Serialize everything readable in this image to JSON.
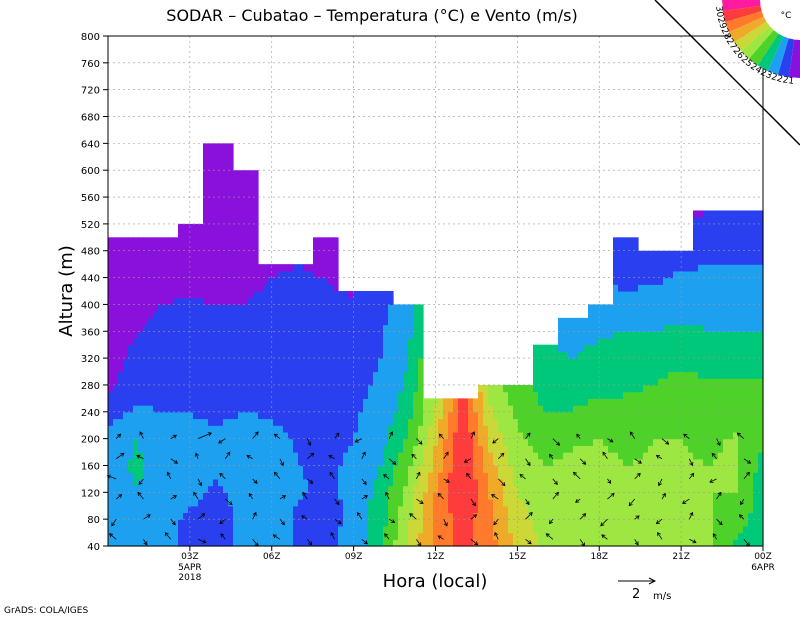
{
  "chart_data": {
    "type": "heatmap",
    "title": "SODAR – Cubatao – Temperatura (°C) e Vento (m/s)",
    "xlabel": "Hora (local)",
    "ylabel": "Altura (m)",
    "footer": "GrADS: COLA/IGES",
    "x_range_hours": [
      0,
      24
    ],
    "y_range_m": [
      40,
      800
    ],
    "y_ticks": [
      40,
      80,
      120,
      160,
      200,
      240,
      280,
      320,
      360,
      400,
      440,
      480,
      520,
      560,
      600,
      640,
      680,
      720,
      760,
      800
    ],
    "x_ticks": [
      {
        "hour": 3,
        "label": "03Z",
        "sub": [
          "5APR",
          "2018"
        ]
      },
      {
        "hour": 6,
        "label": "06Z",
        "sub": []
      },
      {
        "hour": 9,
        "label": "09Z",
        "sub": []
      },
      {
        "hour": 12,
        "label": "12Z",
        "sub": []
      },
      {
        "hour": 15,
        "label": "15Z",
        "sub": []
      },
      {
        "hour": 18,
        "label": "18Z",
        "sub": []
      },
      {
        "hour": 21,
        "label": "21Z",
        "sub": []
      },
      {
        "hour": 24,
        "label": "00Z",
        "sub": [
          "6APR"
        ]
      }
    ],
    "grid": true,
    "legend": {
      "placement": "top-right",
      "unit": "°C",
      "labels": [
        "30",
        "29",
        "28",
        "27",
        "26",
        "25",
        "24",
        "23",
        "22",
        "21"
      ],
      "colors": [
        "#ff1aa0",
        "#ff3c3c",
        "#ff7a2a",
        "#f0aa2a",
        "#ccd838",
        "#9ee642",
        "#4ed22a",
        "#00c87a",
        "#1ea0f0",
        "#2a40f0",
        "#8a10dc"
      ]
    },
    "wind_key": {
      "value": "2",
      "unit": "m/s"
    },
    "hours": [
      0.1,
      1,
      2,
      3,
      4,
      5,
      6,
      7,
      8,
      9,
      10,
      11,
      12,
      13,
      14,
      15,
      16,
      17,
      18,
      19,
      20,
      21,
      22,
      23,
      23.9
    ],
    "top_height_m": [
      500,
      500,
      500,
      520,
      640,
      600,
      460,
      460,
      500,
      420,
      420,
      400,
      260,
      260,
      280,
      280,
      340,
      380,
      400,
      500,
      480,
      480,
      540,
      540,
      540
    ],
    "heights_m": [
      40,
      80,
      120,
      160,
      200,
      240,
      280,
      320,
      360,
      400,
      440,
      480,
      520,
      560,
      600,
      640
    ],
    "temperature_c": [
      [
        22.2,
        22.4,
        22.6,
        22.3,
        22.6,
        21.6,
        20.9,
        20.6,
        20.4,
        20.1,
        19.8,
        19.5,
        19.2,
        18.9,
        18.6,
        18.3
      ],
      [
        22.6,
        22.7,
        22.9,
        23.2,
        23.0,
        22.1,
        21.6,
        21.3,
        20.9,
        20.6,
        20.3,
        20.0,
        19.7,
        19.4,
        19.1,
        18.8
      ],
      [
        22.4,
        22.8,
        22.8,
        22.6,
        22.4,
        22.0,
        21.8,
        21.6,
        21.3,
        21.0,
        20.7,
        20.4,
        20.1,
        19.8,
        19.5,
        19.2
      ],
      [
        21.6,
        21.6,
        22.4,
        22.4,
        22.2,
        22.0,
        21.9,
        21.6,
        21.4,
        21.1,
        20.8,
        20.5,
        20.2,
        19.9,
        19.6,
        19.3
      ],
      [
        21.6,
        21.5,
        21.8,
        22.2,
        22.2,
        21.8,
        21.5,
        21.4,
        21.2,
        21.0,
        20.6,
        20.3,
        20.0,
        19.7,
        19.0,
        18.5
      ],
      [
        22.4,
        22.3,
        22.4,
        22.5,
        22.4,
        22.0,
        21.6,
        21.4,
        21.2,
        21.0,
        20.8,
        20.6,
        20.3,
        20.0,
        19.6,
        18.4
      ],
      [
        22.5,
        22.4,
        22.5,
        22.4,
        22.2,
        21.9,
        21.8,
        21.6,
        21.4,
        21.2,
        21.0,
        20.8,
        20.6,
        20.4,
        20.2,
        20.0
      ],
      [
        21.9,
        21.8,
        22.1,
        22.0,
        21.9,
        21.8,
        21.7,
        21.6,
        21.5,
        21.3,
        21.1,
        20.9,
        20.7,
        20.5,
        20.3,
        20.1
      ],
      [
        21.8,
        21.6,
        21.8,
        21.9,
        21.8,
        21.6,
        21.5,
        21.4,
        21.3,
        21.2,
        21.0,
        20.6,
        20.2,
        19.8,
        19.4,
        19.0
      ],
      [
        22.4,
        22.3,
        22.2,
        22.1,
        22.0,
        21.9,
        21.8,
        21.7,
        21.5,
        21.2,
        20.6,
        20.2,
        19.8,
        19.4,
        19.0,
        18.6
      ],
      [
        23.8,
        23.6,
        23.4,
        23.0,
        22.6,
        22.3,
        22.1,
        22.0,
        21.9,
        21.7,
        21.4,
        21.0,
        20.6,
        20.2,
        19.8,
        19.4
      ],
      [
        26.2,
        25.8,
        25.4,
        24.8,
        24.2,
        23.6,
        23.2,
        23.0,
        22.8,
        22.5,
        22.2,
        21.8,
        21.4,
        21.0,
        20.6,
        20.2
      ],
      [
        28.4,
        28.2,
        28.0,
        27.4,
        26.8,
        26.2,
        25.6,
        25.2,
        24.8,
        24.4,
        24.0,
        23.6,
        23.2,
        22.8,
        22.4,
        22.0
      ],
      [
        29.2,
        29.6,
        30.1,
        30.2,
        30.0,
        29.6,
        29.0,
        28.6,
        28.2,
        27.8,
        27.4,
        27.0,
        26.6,
        26.2,
        25.8,
        25.4
      ],
      [
        28.4,
        28.2,
        28.0,
        27.4,
        26.8,
        26.2,
        25.6,
        25.2,
        24.8,
        24.4,
        24.0,
        23.6,
        23.2,
        22.8,
        22.4,
        22.0
      ],
      [
        26.8,
        26.4,
        26.0,
        25.6,
        25.2,
        24.8,
        24.4,
        24.0,
        23.6,
        23.2,
        22.8,
        22.4,
        22.0,
        21.6,
        21.2,
        20.8
      ],
      [
        25.8,
        25.6,
        25.4,
        25.0,
        24.6,
        24.0,
        23.6,
        23.2,
        22.8,
        22.4,
        22.0,
        21.6,
        21.2,
        20.8,
        20.4,
        20.0
      ],
      [
        25.9,
        25.7,
        25.5,
        25.2,
        24.9,
        24.1,
        23.3,
        23.0,
        22.8,
        22.4,
        22.0,
        21.6,
        21.2,
        20.8,
        20.4,
        20.0
      ],
      [
        25.8,
        25.6,
        25.4,
        25.2,
        25.0,
        24.4,
        23.6,
        23.2,
        22.9,
        22.6,
        22.2,
        21.8,
        21.4,
        21.0,
        20.6,
        20.2
      ],
      [
        25.6,
        25.4,
        25.2,
        25.0,
        24.8,
        24.4,
        23.8,
        23.4,
        23.0,
        22.4,
        21.6,
        21.2,
        20.8,
        20.4,
        20.0,
        19.6
      ],
      [
        25.4,
        25.3,
        25.2,
        25.1,
        25.0,
        24.6,
        24.0,
        23.6,
        23.0,
        22.6,
        21.8,
        21.4,
        21.0,
        20.6,
        20.2,
        19.8
      ],
      [
        25.4,
        25.3,
        25.2,
        25.1,
        25.0,
        24.7,
        24.3,
        23.8,
        23.2,
        22.6,
        22.2,
        21.4,
        21.0,
        20.6,
        20.2,
        19.8
      ],
      [
        25.2,
        25.1,
        25.0,
        25.0,
        24.8,
        24.5,
        24.1,
        23.6,
        23.0,
        22.6,
        22.2,
        21.8,
        21.2,
        20.8,
        20.4,
        20.0
      ],
      [
        23.8,
        24.4,
        25.0,
        25.2,
        25.1,
        24.5,
        24.1,
        23.6,
        23.0,
        22.6,
        22.4,
        21.6,
        21.2,
        20.8,
        20.4,
        20.0
      ],
      [
        23.6,
        23.6,
        23.6,
        23.8,
        24.2,
        24.2,
        24.1,
        23.6,
        23.0,
        22.6,
        22.4,
        21.6,
        21.2,
        20.8,
        20.4,
        20.0
      ]
    ],
    "wind_hours": [
      0.3,
      1.3,
      2.3,
      3.3,
      4.3,
      5.3,
      6.3,
      7.3,
      8.3,
      9.3,
      10.3,
      11.3,
      12.3,
      13.3,
      14.3,
      15.3,
      16.3,
      17.3,
      18.3,
      19.3,
      20.3,
      21.3,
      22.3,
      23.3
    ],
    "wind_heights_m": [
      50,
      80,
      110,
      140,
      170,
      200
    ],
    "wind_u": [
      [
        -0.6,
        -0.4,
        0.5,
        -0.8,
        0.7,
        0.4
      ],
      [
        0.3,
        0.6,
        -0.5,
        -0.4,
        -0.6,
        -0.3
      ],
      [
        -0.5,
        0.4,
        0.5,
        -0.3,
        0.6,
        0.5
      ],
      [
        0.7,
        0.6,
        -0.4,
        0.3,
        -0.2,
        1.2
      ],
      [
        -0.4,
        -0.5,
        0.6,
        -0.5,
        0.4,
        -0.6
      ],
      [
        0.5,
        0.3,
        -0.3,
        0.4,
        -0.5,
        0.5
      ],
      [
        -0.6,
        0.4,
        0.5,
        -0.5,
        0.3,
        -0.5
      ],
      [
        0.4,
        -0.5,
        -0.4,
        0.5,
        0.6,
        0.3
      ],
      [
        -0.3,
        0.6,
        0.4,
        -0.4,
        -0.5,
        0.4
      ],
      [
        0.5,
        -0.4,
        0.5,
        0.4,
        0.3,
        -0.6
      ],
      [
        -0.4,
        0.5,
        -0.3,
        -0.5,
        0.6,
        0.3
      ],
      [
        0.4,
        -0.6,
        0.6,
        0.3,
        -0.4,
        0.5
      ],
      [
        -0.5,
        0.3,
        -0.5,
        0.5,
        0.4,
        -0.4
      ],
      [
        0.6,
        0.5,
        0.4,
        -0.4,
        -0.6,
        0.3
      ],
      [
        -0.3,
        -0.4,
        -0.6,
        0.6,
        0.5,
        -0.5
      ],
      [
        0.5,
        0.6,
        0.3,
        -0.5,
        0.4,
        0.4
      ],
      [
        -0.6,
        -0.3,
        0.5,
        0.4,
        -0.3,
        0.6
      ],
      [
        0.4,
        0.5,
        -0.4,
        -0.6,
        0.5,
        -0.3
      ],
      [
        -0.5,
        -0.6,
        0.6,
        0.3,
        -0.4,
        0.5
      ],
      [
        0.3,
        0.4,
        -0.5,
        0.5,
        0.6,
        -0.4
      ],
      [
        -0.4,
        -0.5,
        0.3,
        -0.3,
        -0.5,
        0.6
      ],
      [
        0.6,
        0.3,
        -0.6,
        0.4,
        0.3,
        -0.5
      ],
      [
        -0.3,
        0.5,
        0.4,
        -0.6,
        -0.4,
        0.3
      ],
      [
        0.5,
        -0.4,
        -0.3,
        0.5,
        0.6,
        -0.6
      ]
    ],
    "wind_v": [
      [
        0.5,
        -0.6,
        0.4,
        0.3,
        0.5,
        0.4
      ],
      [
        -0.5,
        0.4,
        0.6,
        -0.5,
        0.3,
        0.6
      ],
      [
        0.6,
        -0.5,
        0.3,
        0.6,
        -0.4,
        0.3
      ],
      [
        -0.3,
        0.5,
        0.6,
        -0.6,
        0.5,
        0.5
      ],
      [
        0.5,
        -0.4,
        -0.5,
        0.5,
        0.6,
        -0.4
      ],
      [
        -0.6,
        0.6,
        0.5,
        -0.4,
        0.3,
        0.6
      ],
      [
        0.4,
        -0.5,
        0.3,
        0.6,
        -0.6,
        0.4
      ],
      [
        -0.5,
        0.3,
        0.6,
        -0.4,
        0.5,
        -0.6
      ],
      [
        0.6,
        -0.4,
        -0.5,
        0.6,
        0.3,
        0.5
      ],
      [
        -0.4,
        0.6,
        0.3,
        -0.5,
        0.6,
        -0.3
      ],
      [
        0.5,
        -0.3,
        0.6,
        0.4,
        -0.5,
        0.6
      ],
      [
        -0.6,
        0.5,
        -0.4,
        0.6,
        0.4,
        -0.5
      ],
      [
        0.3,
        -0.6,
        0.5,
        -0.3,
        0.6,
        0.4
      ],
      [
        -0.5,
        0.4,
        -0.6,
        0.5,
        -0.3,
        0.6
      ],
      [
        0.6,
        -0.5,
        0.4,
        -0.6,
        0.5,
        -0.4
      ],
      [
        -0.4,
        0.6,
        -0.5,
        0.4,
        -0.6,
        0.5
      ],
      [
        0.5,
        -0.4,
        0.6,
        -0.5,
        0.4,
        -0.6
      ],
      [
        -0.6,
        0.5,
        -0.3,
        0.6,
        -0.5,
        0.4
      ],
      [
        0.4,
        -0.6,
        0.5,
        -0.4,
        0.6,
        -0.3
      ],
      [
        -0.5,
        0.3,
        -0.6,
        0.5,
        -0.4,
        0.6
      ],
      [
        0.6,
        -0.4,
        0.5,
        -0.6,
        0.3,
        -0.5
      ],
      [
        -0.3,
        0.6,
        -0.4,
        0.5,
        -0.6,
        0.4
      ],
      [
        0.5,
        -0.5,
        0.6,
        -0.3,
        0.5,
        -0.6
      ],
      [
        -0.6,
        0.4,
        -0.5,
        0.6,
        -0.4,
        0.5
      ]
    ]
  }
}
